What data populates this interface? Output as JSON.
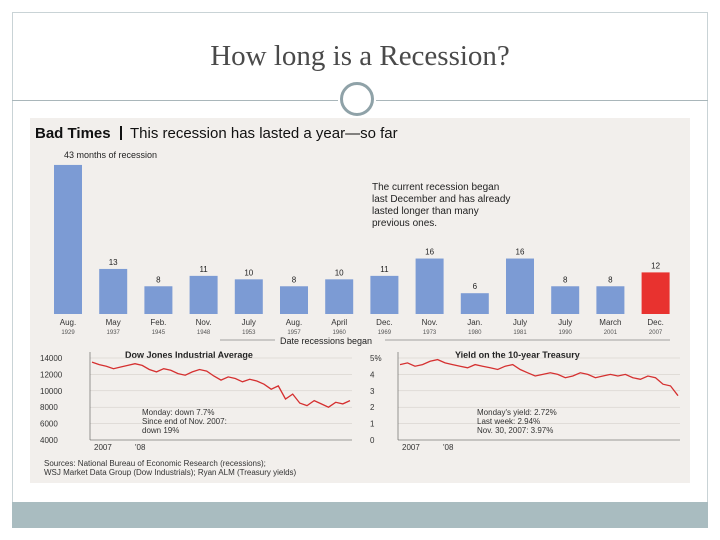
{
  "slide": {
    "title": "How long is a Recession?"
  },
  "colors": {
    "bar": "#7c9bd4",
    "bar_highlight": "#e8322f",
    "line": "#d53030",
    "ring": "#8fa2a8",
    "band": "#a9bcc0"
  },
  "chart_data": [
    {
      "type": "bar",
      "title": "Bad Times",
      "subtitle": "This recession has lasted a year—so far",
      "annotation_top": "43 months of recession",
      "annotation_note": [
        "The current recession began",
        "last December and has already",
        "lasted longer than many",
        "previous ones."
      ],
      "xlabel": "Date recessions began",
      "categories": [
        {
          "m": "Aug.",
          "y": "1929"
        },
        {
          "m": "May",
          "y": "1937"
        },
        {
          "m": "Feb.",
          "y": "1945"
        },
        {
          "m": "Nov.",
          "y": "1948"
        },
        {
          "m": "July",
          "y": "1953"
        },
        {
          "m": "Aug.",
          "y": "1957"
        },
        {
          "m": "April",
          "y": "1960"
        },
        {
          "m": "Dec.",
          "y": "1969"
        },
        {
          "m": "Nov.",
          "y": "1973"
        },
        {
          "m": "Jan.",
          "y": "1980"
        },
        {
          "m": "July",
          "y": "1981"
        },
        {
          "m": "July",
          "y": "1990"
        },
        {
          "m": "March",
          "y": "2001"
        },
        {
          "m": "Dec.",
          "y": "2007"
        }
      ],
      "values": [
        43,
        13,
        8,
        11,
        10,
        8,
        10,
        11,
        16,
        6,
        16,
        8,
        8,
        12
      ],
      "highlight_index": 13,
      "ylim": [
        0,
        45
      ]
    },
    {
      "type": "line",
      "title": "Dow Jones Industrial Average",
      "yticks": [
        "14000",
        "12000",
        "10000",
        "8000",
        "6000",
        "4000"
      ],
      "ylim": [
        4000,
        14000
      ],
      "xticks": [
        "2007",
        "'08"
      ],
      "y": [
        13500,
        13200,
        13000,
        12700,
        12900,
        13100,
        13300,
        13100,
        12600,
        12300,
        12700,
        12500,
        12100,
        11900,
        12300,
        12600,
        12400,
        11800,
        11300,
        11700,
        11500,
        11100,
        11400,
        11200,
        10800,
        10200,
        10600,
        9000,
        9600,
        8500,
        8200,
        8800,
        8400,
        8000,
        8600,
        8400,
        8800
      ],
      "notes": [
        "Monday: down 7.7%",
        "Since end of Nov. 2007:",
        "down 19%"
      ]
    },
    {
      "type": "line",
      "title": "Yield on the 10-year Treasury",
      "yticks": [
        "5%",
        "4",
        "3",
        "2",
        "1",
        "0"
      ],
      "ylim": [
        0,
        5
      ],
      "xticks": [
        "2007",
        "'08"
      ],
      "y": [
        4.6,
        4.7,
        4.5,
        4.6,
        4.8,
        4.9,
        4.7,
        4.6,
        4.5,
        4.4,
        4.6,
        4.5,
        4.4,
        4.3,
        4.5,
        4.6,
        4.3,
        4.1,
        3.9,
        4.0,
        4.1,
        4.0,
        3.8,
        3.9,
        4.1,
        4.0,
        3.8,
        3.9,
        4.0,
        3.9,
        4.0,
        3.8,
        3.7,
        3.9,
        3.8,
        3.4,
        3.3,
        2.7
      ],
      "notes": [
        "Monday's yield: 2.72%",
        "Last week: 2.94%",
        "Nov. 30, 2007: 3.97%"
      ]
    }
  ],
  "sources": [
    "Sources: National Bureau of Economic Research (recessions);",
    "WSJ Market Data Group (Dow Industrials); Ryan ALM (Treasury yields)"
  ]
}
